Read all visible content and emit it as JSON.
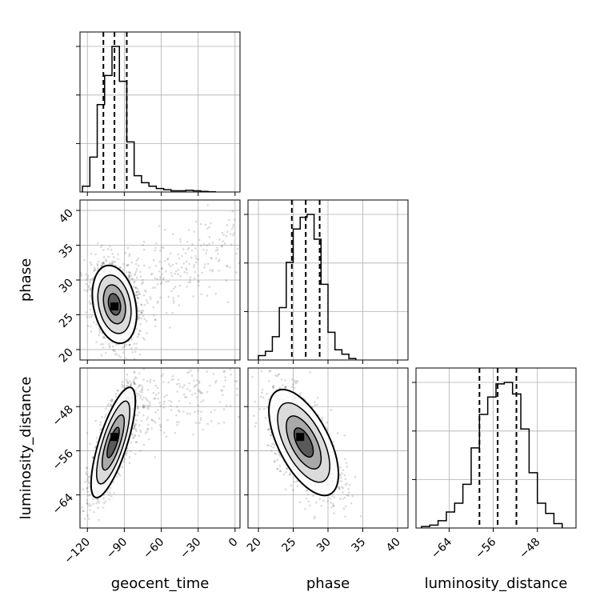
{
  "chart_data": {
    "type": "corner",
    "parameters": [
      "geocent_time",
      "phase",
      "luminosity_distance"
    ],
    "axes": {
      "geocent_time": {
        "ticks": [
          -120,
          -90,
          -60,
          -30,
          0
        ],
        "tick_labels": [
          "−120",
          "−90",
          "−60",
          "−30",
          "0"
        ],
        "range": [
          -126,
          4
        ]
      },
      "phase": {
        "ticks": [
          20,
          25,
          30,
          35,
          40
        ],
        "tick_labels": [
          "20",
          "25",
          "30",
          "35",
          "40"
        ],
        "range": [
          18.5,
          41.5
        ]
      },
      "luminosity_distance": {
        "ticks": [
          -64,
          -56,
          -48
        ],
        "tick_labels": [
          "−64",
          "−56",
          "−48"
        ],
        "range": [
          -70,
          -41
        ]
      }
    },
    "marginals": {
      "geocent_time": {
        "quantile_lines": [
          -107,
          -98,
          -88
        ],
        "bin_edges": [
          -124,
          -118,
          -112,
          -106,
          -100,
          -94,
          -88,
          -82,
          -76,
          -70,
          -64,
          -58,
          -52,
          -46,
          -40,
          -34,
          -28,
          -22,
          -16
        ],
        "counts": [
          0.05,
          0.3,
          0.75,
          1.0,
          1.25,
          0.95,
          0.43,
          0.14,
          0.08,
          0.05,
          0.03,
          0.02,
          0.01,
          0.01,
          0.015,
          0.01,
          0.005,
          0.002
        ]
      },
      "phase": {
        "quantile_lines": [
          24.8,
          26.8,
          28.8
        ],
        "bin_edges": [
          20.0,
          21.0,
          22.0,
          23.0,
          24.0,
          25.0,
          26.0,
          27.0,
          28.0,
          29.0,
          30.0,
          31.0,
          32.0,
          33.0,
          34.0
        ],
        "counts": [
          0.03,
          0.06,
          0.16,
          0.36,
          0.67,
          0.9,
          0.98,
          1.0,
          0.83,
          0.52,
          0.19,
          0.07,
          0.04,
          0.01
        ]
      },
      "luminosity_distance": {
        "quantile_lines": [
          -58.5,
          -55.2,
          -51.8
        ],
        "bin_edges": [
          -69.0,
          -67.5,
          -66.0,
          -64.5,
          -63.0,
          -61.5,
          -60.0,
          -58.5,
          -57.0,
          -55.5,
          -54.0,
          -52.5,
          -51.0,
          -49.5,
          -48.0,
          -46.5,
          -45.0,
          -43.5
        ],
        "counts": [
          0.01,
          0.02,
          0.05,
          0.11,
          0.17,
          0.3,
          0.55,
          0.78,
          0.9,
          0.99,
          1.0,
          0.92,
          0.68,
          0.38,
          0.17,
          0.1,
          0.03
        ]
      }
    },
    "scatter": {
      "phase_vs_geocent_time": {
        "center": [
          -98,
          26.5
        ],
        "mode": [
          -98,
          26.2
        ]
      },
      "luminosity_distance_vs_geocent_time": {
        "center": [
          -99,
          -54.5
        ],
        "mode": [
          -98,
          -53.5
        ]
      },
      "luminosity_distance_vs_phase": {
        "center": [
          26.5,
          -54.5
        ],
        "mode": [
          26.0,
          -53.5
        ]
      }
    },
    "grid": true
  }
}
